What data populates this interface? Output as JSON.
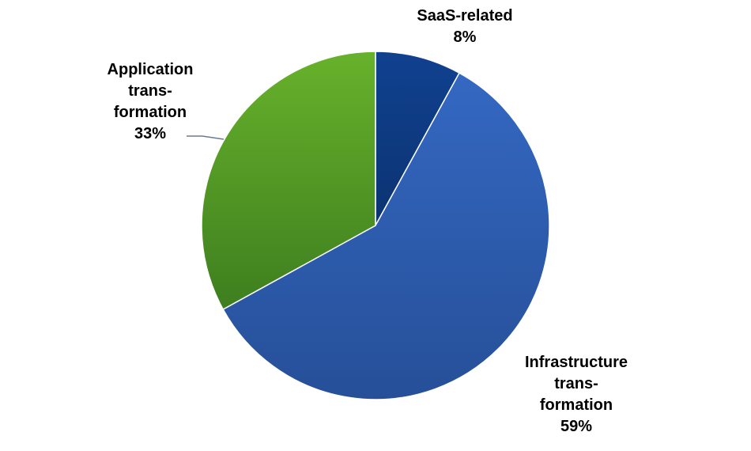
{
  "chart_data": {
    "type": "pie",
    "title": "",
    "start_angle_deg": 0,
    "direction": "clockwise",
    "legend": "none",
    "slices": [
      {
        "label_lines": [
          "SaaS-related"
        ],
        "value": 8,
        "value_label": "8%",
        "color": "#0F3A80"
      },
      {
        "label_lines": [
          "Infrastructure",
          "trans-",
          "formation"
        ],
        "value": 59,
        "value_label": "59%",
        "color": "#2D5EAE"
      },
      {
        "label_lines": [
          "Application",
          "trans-",
          "formation"
        ],
        "value": 33,
        "value_label": "33%",
        "color": "#5BA624"
      }
    ]
  }
}
